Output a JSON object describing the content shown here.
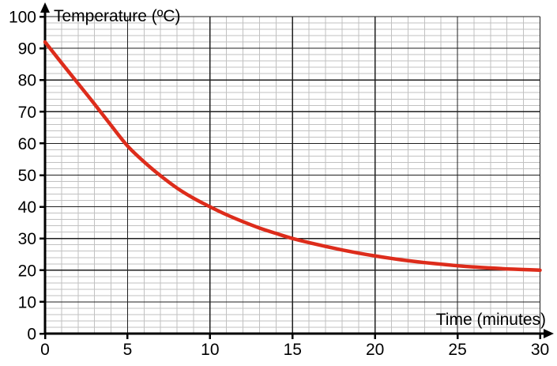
{
  "chart_data": {
    "type": "line",
    "title": "",
    "x_axis_label": "Time (minutes)",
    "y_axis_label": "Temperature (ºC)",
    "x": [
      0,
      1,
      2,
      3,
      4,
      5,
      6,
      7,
      8,
      9,
      10,
      11,
      12,
      13,
      14,
      15,
      16,
      17,
      18,
      19,
      20,
      21,
      22,
      23,
      24,
      25,
      26,
      27,
      28,
      29,
      30
    ],
    "series": [
      {
        "name": "Temperature",
        "values": [
          92,
          85.4,
          78.9,
          72.4,
          65.7,
          59.2,
          54.2,
          49.8,
          45.9,
          42.7,
          40,
          37.5,
          35.3,
          33.3,
          31.6,
          30,
          28.7,
          27.5,
          26.4,
          25.4,
          24.5,
          23.7,
          23,
          22.4,
          21.9,
          21.4,
          21,
          20.7,
          20.4,
          20.2,
          20
        ]
      }
    ],
    "xlim": [
      0,
      30
    ],
    "ylim": [
      0,
      100
    ],
    "x_ticks": [
      0,
      5,
      10,
      15,
      20,
      25,
      30
    ],
    "y_ticks": [
      0,
      10,
      20,
      30,
      40,
      50,
      60,
      70,
      80,
      90,
      100
    ],
    "x_minor_step": 1,
    "y_minor_step": 2,
    "grid": "major+minor",
    "legend": "none",
    "colors": {
      "curve": "#dd2c1b",
      "major_grid": "#1f1f1f",
      "minor_grid": "#c1c1c1",
      "axis": "#000000",
      "background": "#ffffff",
      "text": "#000000"
    }
  }
}
